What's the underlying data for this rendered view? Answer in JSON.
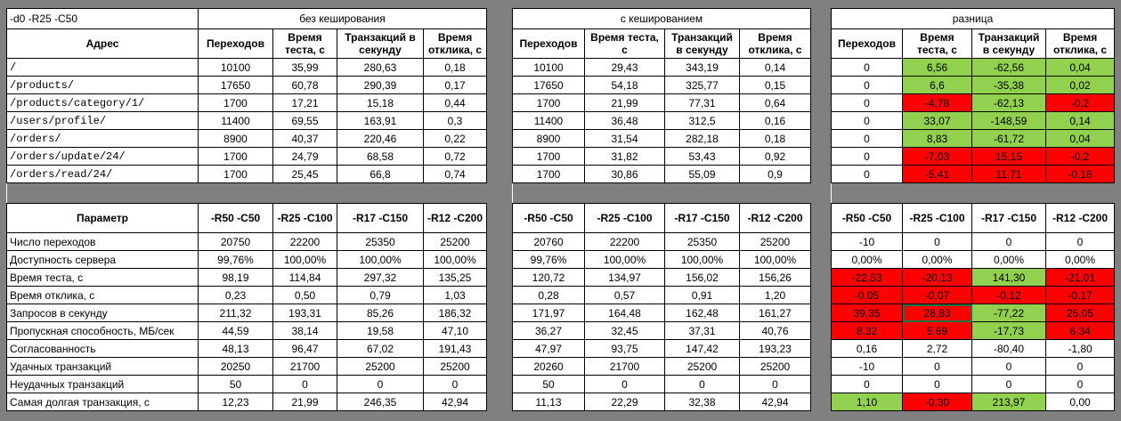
{
  "colors": {
    "green": "#92d050",
    "red": "#ff0000",
    "gap": "#808080",
    "cell": "#ffffff"
  },
  "left": {
    "corner_label": "-d0 -R25 -C50",
    "title": "без кеширования",
    "address_header": "Адрес",
    "col_headers": [
      "Переходов",
      "Время теста, с",
      "Транзакций в секунду",
      "Время отклика, с"
    ],
    "rows": [
      {
        "addr": "/",
        "cells": [
          "10100",
          "35,99",
          "280,63",
          "0,18"
        ]
      },
      {
        "addr": "/products/",
        "cells": [
          "17650",
          "60,78",
          "290,39",
          "0,17"
        ]
      },
      {
        "addr": "/products/category/1/",
        "cells": [
          "1700",
          "17,21",
          "15,18",
          "0,44"
        ]
      },
      {
        "addr": "/users/profile/",
        "cells": [
          "11400",
          "69,55",
          "163,91",
          "0,3"
        ]
      },
      {
        "addr": "/orders/",
        "cells": [
          "8900",
          "40,37",
          "220,46",
          "0,22"
        ]
      },
      {
        "addr": "/orders/update/24/",
        "cells": [
          "1700",
          "24,79",
          "68,58",
          "0,72"
        ]
      },
      {
        "addr": "/orders/read/24/",
        "cells": [
          "1700",
          "25,45",
          "66,8",
          "0,74"
        ]
      }
    ],
    "param_header": "Параметр",
    "param_cols": [
      "-R50 -C50",
      "-R25 -C100",
      "-R17 -C150",
      "-R12 -C200"
    ],
    "params": [
      {
        "name": "Число переходов",
        "cells": [
          "20750",
          "22200",
          "25350",
          "25200"
        ]
      },
      {
        "name": "Доступность сервера",
        "cells": [
          "99,76%",
          "100,00%",
          "100,00%",
          "100,00%"
        ]
      },
      {
        "name": "Время теста, с",
        "cells": [
          "98,19",
          "114,84",
          "297,32",
          "135,25"
        ]
      },
      {
        "name": "Время отклика, с",
        "cells": [
          "0,23",
          "0,50",
          "0,79",
          "1,03"
        ]
      },
      {
        "name": "Запросов в секунду",
        "cells": [
          "211,32",
          "193,31",
          "85,26",
          "186,32"
        ]
      },
      {
        "name": "Пропускная способность, МБ/сек",
        "cells": [
          "44,59",
          "38,14",
          "19,58",
          "47,10"
        ]
      },
      {
        "name": "Согласованность",
        "cells": [
          "48,13",
          "96,47",
          "67,02",
          "191,43"
        ]
      },
      {
        "name": "Удачных транзакций",
        "cells": [
          "20250",
          "21700",
          "25200",
          "25200"
        ]
      },
      {
        "name": "Неудачных транзакций",
        "cells": [
          "50",
          "0",
          "0",
          "0"
        ]
      },
      {
        "name": "Самая долгая транзакция, с",
        "cells": [
          "12,23",
          "21,99",
          "246,35",
          "42,94"
        ]
      }
    ]
  },
  "middle": {
    "title": "с кешированием",
    "col_headers": [
      "Переходов",
      "Время теста, с",
      "Транзакций в секунду",
      "Время отклика, с"
    ],
    "rows": [
      [
        "10100",
        "29,43",
        "343,19",
        "0,14"
      ],
      [
        "17650",
        "54,18",
        "325,77",
        "0,15"
      ],
      [
        "1700",
        "21,99",
        "77,31",
        "0,64"
      ],
      [
        "11400",
        "36,48",
        "312,5",
        "0,16"
      ],
      [
        "8900",
        "31,54",
        "282,18",
        "0,18"
      ],
      [
        "1700",
        "31,82",
        "53,43",
        "0,92"
      ],
      [
        "1700",
        "30,86",
        "55,09",
        "0,9"
      ]
    ],
    "param_cols": [
      "-R50 -C50",
      "-R25 -C100",
      "-R17 -C150",
      "-R12 -C200"
    ],
    "params": [
      [
        "20760",
        "22200",
        "25350",
        "25200"
      ],
      [
        "99,76%",
        "100,00%",
        "100,00%",
        "100,00%"
      ],
      [
        "120,72",
        "134,97",
        "156,02",
        "156,26"
      ],
      [
        "0,28",
        "0,57",
        "0,91",
        "1,20"
      ],
      [
        "171,97",
        "164,48",
        "162,48",
        "161,27"
      ],
      [
        "36,27",
        "32,45",
        "37,31",
        "40,76"
      ],
      [
        "47,97",
        "93,75",
        "147,42",
        "193,23"
      ],
      [
        "20260",
        "21700",
        "25200",
        "25200"
      ],
      [
        "50",
        "0",
        "0",
        "0"
      ],
      [
        "11,13",
        "22,29",
        "32,38",
        "42,94"
      ]
    ]
  },
  "right": {
    "title": "разница",
    "col_headers": [
      "Переходов",
      "Время теста, с",
      "Транзакций в секунду",
      "Время отклика, с"
    ],
    "rows": [
      [
        {
          "v": "0",
          "c": ""
        },
        {
          "v": "6,56",
          "c": "green"
        },
        {
          "v": "-62,56",
          "c": "green"
        },
        {
          "v": "0,04",
          "c": "green"
        }
      ],
      [
        {
          "v": "0",
          "c": ""
        },
        {
          "v": "6,6",
          "c": "green"
        },
        {
          "v": "-35,38",
          "c": "green"
        },
        {
          "v": "0,02",
          "c": "green"
        }
      ],
      [
        {
          "v": "0",
          "c": ""
        },
        {
          "v": "-4,78",
          "c": "red"
        },
        {
          "v": "-62,13",
          "c": "green"
        },
        {
          "v": "-0,2",
          "c": "red"
        }
      ],
      [
        {
          "v": "0",
          "c": ""
        },
        {
          "v": "33,07",
          "c": "green"
        },
        {
          "v": "-148,59",
          "c": "green"
        },
        {
          "v": "0,14",
          "c": "green"
        }
      ],
      [
        {
          "v": "0",
          "c": ""
        },
        {
          "v": "8,83",
          "c": "green"
        },
        {
          "v": "-61,72",
          "c": "green"
        },
        {
          "v": "0,04",
          "c": "green"
        }
      ],
      [
        {
          "v": "0",
          "c": ""
        },
        {
          "v": "-7,03",
          "c": "red"
        },
        {
          "v": "15,15",
          "c": "red"
        },
        {
          "v": "-0,2",
          "c": "red"
        }
      ],
      [
        {
          "v": "0",
          "c": ""
        },
        {
          "v": "-5,41",
          "c": "red"
        },
        {
          "v": "11,71",
          "c": "red"
        },
        {
          "v": "-0,16",
          "c": "red"
        }
      ]
    ],
    "param_cols": [
      "-R50 -C50",
      "-R25 -C100",
      "-R17 -C150",
      "-R12 -C200"
    ],
    "params": [
      [
        {
          "v": "-10",
          "c": ""
        },
        {
          "v": "0",
          "c": ""
        },
        {
          "v": "0",
          "c": ""
        },
        {
          "v": "0",
          "c": ""
        }
      ],
      [
        {
          "v": "0,00%",
          "c": ""
        },
        {
          "v": "0,00%",
          "c": ""
        },
        {
          "v": "0,00%",
          "c": ""
        },
        {
          "v": "0,00%",
          "c": ""
        }
      ],
      [
        {
          "v": "-22,53",
          "c": "red"
        },
        {
          "v": "-20,13",
          "c": "red"
        },
        {
          "v": "141,30",
          "c": "green"
        },
        {
          "v": "-21,01",
          "c": "red"
        }
      ],
      [
        {
          "v": "-0,05",
          "c": "red"
        },
        {
          "v": "-0,07",
          "c": "red"
        },
        {
          "v": "-0,12",
          "c": "red"
        },
        {
          "v": "-0,17",
          "c": "red"
        }
      ],
      [
        {
          "v": "39,35",
          "c": "red"
        },
        {
          "v": "28,83",
          "c": "red",
          "sel": true
        },
        {
          "v": "-77,22",
          "c": "green"
        },
        {
          "v": "25,05",
          "c": "red"
        }
      ],
      [
        {
          "v": "8,32",
          "c": "red"
        },
        {
          "v": "5,69",
          "c": "red"
        },
        {
          "v": "-17,73",
          "c": "green"
        },
        {
          "v": "6,34",
          "c": "red"
        }
      ],
      [
        {
          "v": "0,16",
          "c": ""
        },
        {
          "v": "2,72",
          "c": ""
        },
        {
          "v": "-80,40",
          "c": ""
        },
        {
          "v": "-1,80",
          "c": ""
        }
      ],
      [
        {
          "v": "-10",
          "c": ""
        },
        {
          "v": "0",
          "c": ""
        },
        {
          "v": "0",
          "c": ""
        },
        {
          "v": "0",
          "c": ""
        }
      ],
      [
        {
          "v": "0",
          "c": ""
        },
        {
          "v": "0",
          "c": ""
        },
        {
          "v": "0",
          "c": ""
        },
        {
          "v": "0",
          "c": ""
        }
      ],
      [
        {
          "v": "1,10",
          "c": "green"
        },
        {
          "v": "-0,30",
          "c": "red"
        },
        {
          "v": "213,97",
          "c": "green"
        },
        {
          "v": "0,00",
          "c": ""
        }
      ]
    ]
  }
}
